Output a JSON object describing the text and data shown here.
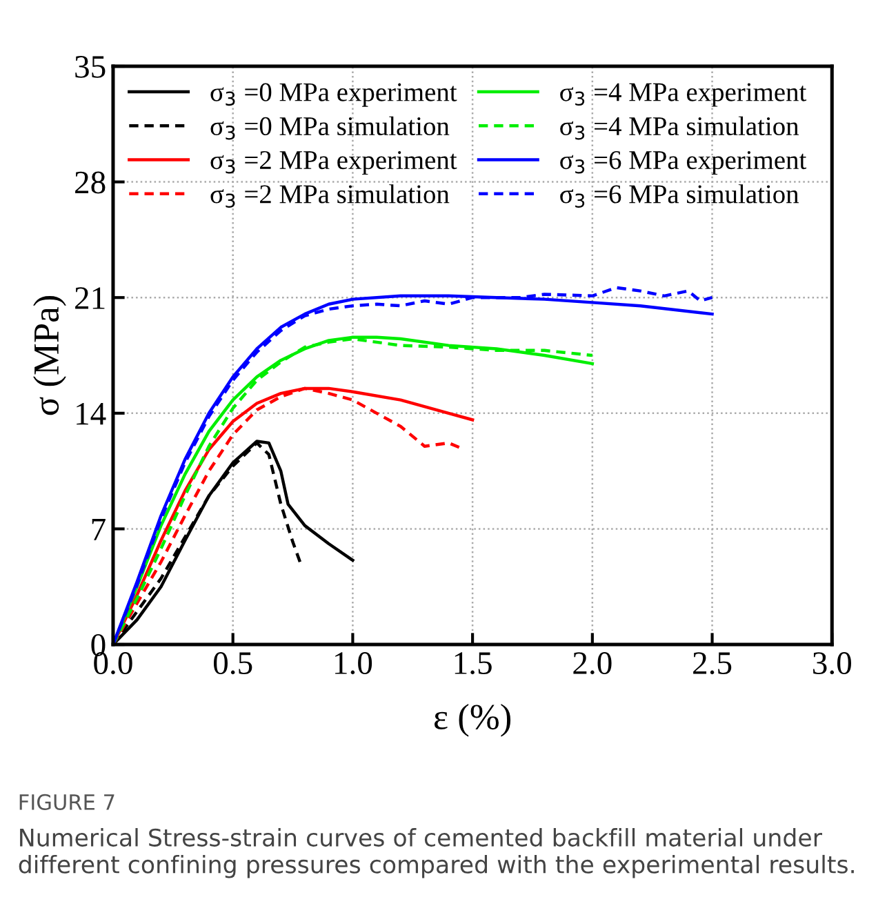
{
  "chart_data": {
    "type": "line",
    "xlabel": "ε (%)",
    "ylabel": "σ (MPa)",
    "xlim": [
      0,
      3.0
    ],
    "ylim": [
      0,
      35
    ],
    "xticks": [
      {
        "value": 0,
        "label": "0.0"
      },
      {
        "value": 0.5,
        "label": "0.5"
      },
      {
        "value": 1.0,
        "label": "1.0"
      },
      {
        "value": 1.5,
        "label": "1.5"
      },
      {
        "value": 2.0,
        "label": "2.0"
      },
      {
        "value": 2.5,
        "label": "2.5"
      },
      {
        "value": 3.0,
        "label": "3.0"
      }
    ],
    "yticks": [
      0,
      7,
      14,
      21,
      28,
      35
    ],
    "grid": true,
    "legend": "top left",
    "marker": "none",
    "annotations": [
      "FIGURE 7",
      "Numerical Stress-strain curves of cemented backfill material under different confining pressures compared with the experimental results."
    ],
    "series": [
      {
        "name": "σ$_{3}$ =0 MPa experiment",
        "color": "#000000",
        "line_style": "solid",
        "x": [
          0,
          0.1,
          0.2,
          0.3,
          0.4,
          0.5,
          0.6,
          0.65,
          0.7,
          0.73,
          0.8,
          0.9,
          1.0
        ],
        "values": [
          0,
          1.5,
          3.5,
          6.3,
          9.0,
          11.0,
          12.3,
          12.2,
          10.5,
          8.5,
          7.2,
          6.1,
          5.1
        ]
      },
      {
        "name": "σ$_{3}$ =0 MPa simulation",
        "color": "#000000",
        "line_style": "dashed",
        "x": [
          0,
          0.1,
          0.2,
          0.3,
          0.4,
          0.5,
          0.6,
          0.65,
          0.7,
          0.75,
          0.78
        ],
        "values": [
          0,
          2,
          4,
          6.5,
          9,
          10.8,
          12.2,
          11.5,
          8.5,
          6.2,
          5.0
        ]
      },
      {
        "name": "σ$_{3}$ =2 MPa experiment",
        "color": "#ff0000",
        "line_style": "solid",
        "x": [
          0,
          0.1,
          0.2,
          0.3,
          0.4,
          0.5,
          0.6,
          0.7,
          0.8,
          0.9,
          1.0,
          1.2,
          1.4,
          1.5
        ],
        "values": [
          0,
          3,
          6.3,
          9.3,
          11.8,
          13.5,
          14.6,
          15.2,
          15.5,
          15.5,
          15.3,
          14.8,
          14.0,
          13.6
        ]
      },
      {
        "name": "σ$_{3}$ =2 MPa simulation",
        "color": "#ff0000",
        "line_style": "dashed",
        "x": [
          0,
          0.1,
          0.2,
          0.3,
          0.4,
          0.5,
          0.6,
          0.7,
          0.8,
          0.9,
          1.0,
          1.1,
          1.2,
          1.3,
          1.4,
          1.45
        ],
        "values": [
          0,
          2.5,
          5,
          7.8,
          10.5,
          12.7,
          14.2,
          15.0,
          15.5,
          15.2,
          14.8,
          14.0,
          13.2,
          12.0,
          12.2,
          11.9
        ]
      },
      {
        "name": "σ$_{3}$ =4 MPa experiment",
        "color": "#00ee00",
        "line_style": "solid",
        "x": [
          0,
          0.1,
          0.2,
          0.3,
          0.4,
          0.5,
          0.6,
          0.7,
          0.8,
          0.9,
          1.0,
          1.1,
          1.2,
          1.4,
          1.6,
          1.8,
          2.0
        ],
        "values": [
          0,
          3.5,
          7.2,
          10.3,
          12.9,
          14.8,
          16.2,
          17.2,
          17.9,
          18.4,
          18.6,
          18.6,
          18.5,
          18.1,
          17.9,
          17.5,
          17.0
        ]
      },
      {
        "name": "σ$_{3}$ =4 MPa simulation",
        "color": "#00ee00",
        "line_style": "dashed",
        "x": [
          0,
          0.1,
          0.2,
          0.3,
          0.4,
          0.5,
          0.6,
          0.7,
          0.8,
          0.9,
          1.0,
          1.1,
          1.2,
          1.4,
          1.6,
          1.8,
          2.0
        ],
        "values": [
          0,
          2.8,
          5.8,
          9,
          12,
          14.3,
          16.0,
          17.1,
          18.0,
          18.3,
          18.5,
          18.3,
          18.1,
          18.0,
          17.8,
          17.8,
          17.5
        ]
      },
      {
        "name": "σ$_{3}$ =6 MPa experiment",
        "color": "#0000ff",
        "line_style": "solid",
        "x": [
          0,
          0.1,
          0.2,
          0.3,
          0.4,
          0.5,
          0.6,
          0.7,
          0.8,
          0.9,
          1.0,
          1.2,
          1.4,
          1.6,
          1.8,
          2.0,
          2.2,
          2.5
        ],
        "values": [
          0,
          3.8,
          7.8,
          11.2,
          14,
          16.2,
          17.9,
          19.2,
          20.0,
          20.6,
          20.9,
          21.1,
          21.1,
          21.0,
          20.9,
          20.7,
          20.5,
          20.0
        ]
      },
      {
        "name": "σ$_{3}$ =6 MPa simulation",
        "color": "#0000ff",
        "line_style": "dashed",
        "x": [
          0,
          0.1,
          0.2,
          0.3,
          0.4,
          0.5,
          0.6,
          0.7,
          0.8,
          0.9,
          1.0,
          1.1,
          1.2,
          1.3,
          1.4,
          1.5,
          1.7,
          1.8,
          2.0,
          2.1,
          2.2,
          2.3,
          2.4,
          2.45,
          2.5
        ],
        "values": [
          0,
          3.6,
          7.6,
          11,
          13.8,
          16,
          17.7,
          19,
          19.9,
          20.3,
          20.5,
          20.6,
          20.5,
          20.8,
          20.6,
          21.0,
          21.0,
          21.2,
          21.1,
          21.6,
          21.4,
          21.1,
          21.4,
          20.8,
          21.0
        ]
      }
    ]
  }
}
